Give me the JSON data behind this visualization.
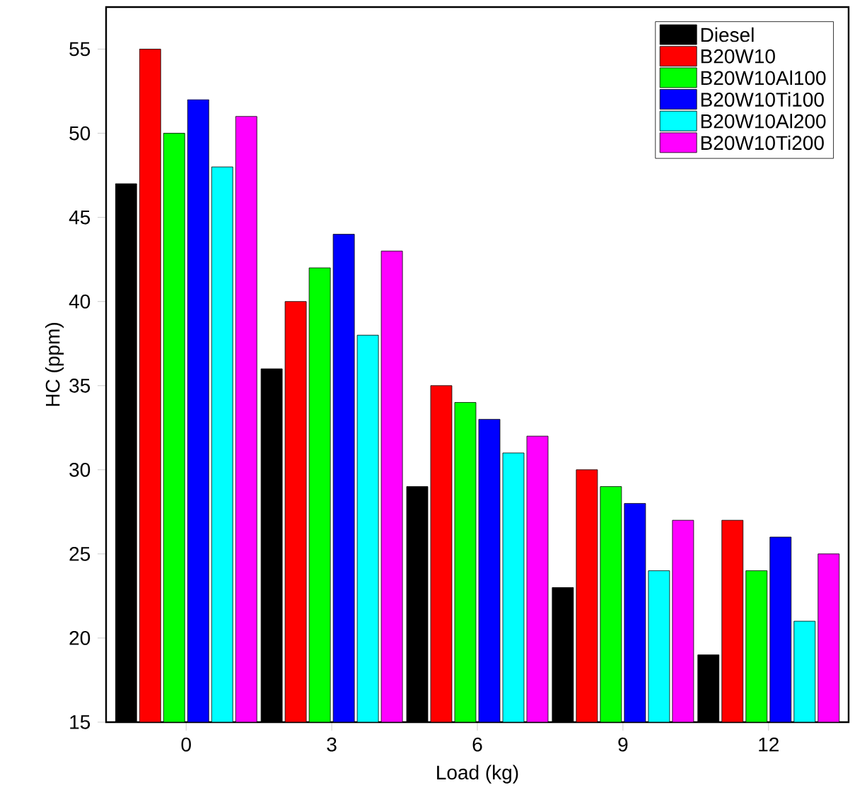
{
  "chart_data": {
    "type": "bar",
    "xlabel": "Load (kg)",
    "ylabel": "HC (ppm)",
    "categories": [
      "0",
      "3",
      "6",
      "9",
      "12"
    ],
    "series": [
      {
        "name": "Diesel",
        "color": "#000000",
        "values": [
          47,
          36,
          29,
          23,
          19
        ]
      },
      {
        "name": "B20W10",
        "color": "#ff0000",
        "values": [
          55,
          40,
          35,
          30,
          27
        ]
      },
      {
        "name": "B20W10Al100",
        "color": "#00ff00",
        "values": [
          50,
          42,
          34,
          29,
          24
        ]
      },
      {
        "name": "B20W10Ti100",
        "color": "#0000ff",
        "values": [
          52,
          44,
          33,
          28,
          26
        ]
      },
      {
        "name": "B20W10Al200",
        "color": "#00ffff",
        "values": [
          48,
          38,
          31,
          24,
          21
        ]
      },
      {
        "name": "B20W10Ti200",
        "color": "#ff00ff",
        "values": [
          51,
          43,
          32,
          27,
          25
        ]
      }
    ],
    "ylim": [
      15,
      57.5
    ],
    "yticks": [
      15,
      20,
      25,
      30,
      35,
      40,
      45,
      50,
      55
    ],
    "grid": false,
    "legend": "top right"
  }
}
